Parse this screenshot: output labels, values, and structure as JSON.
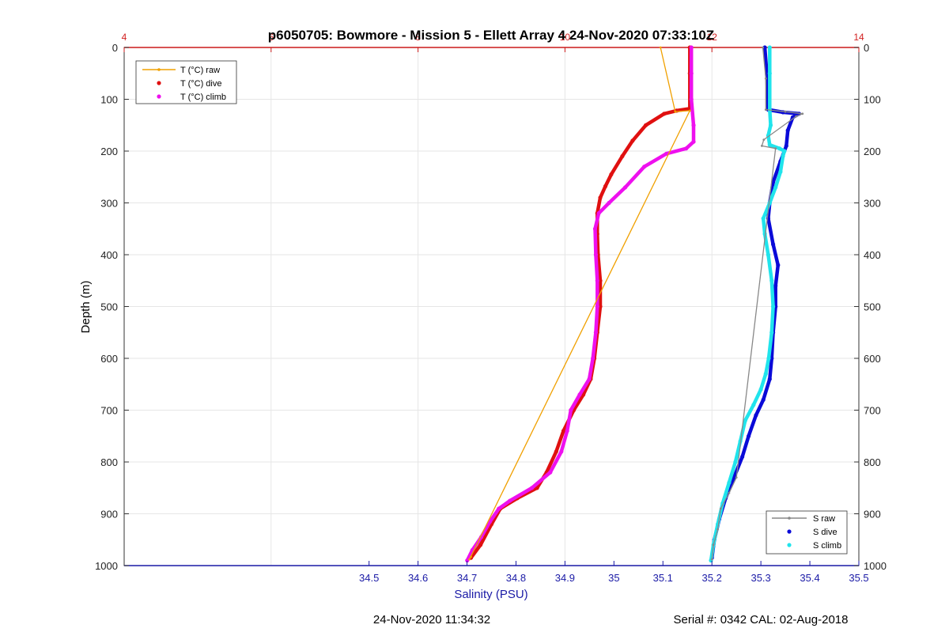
{
  "chart_data": {
    "type": "line",
    "title": "p6050705: Bowmore - Mission 5 - Ellett Array 4 24-Nov-2020 07:33:10Z",
    "xlabel": "Salinity (PSU)",
    "ylabel": "Depth (m)",
    "xlim": [
      34.0,
      35.5
    ],
    "ylim": [
      0,
      1000
    ],
    "y_reversed": true,
    "grid": true,
    "x_ticks": [
      "34.5",
      "34.6",
      "34.7",
      "34.8",
      "34.9",
      "35",
      "35.1",
      "35.2",
      "35.3",
      "35.4",
      "35.5"
    ],
    "y_ticks": [
      "0",
      "100",
      "200",
      "300",
      "400",
      "500",
      "600",
      "700",
      "800",
      "900",
      "1000"
    ],
    "top_axis": {
      "quantity": "Temperature (°C)",
      "xlim": [
        4,
        14
      ],
      "tick_values": [
        4,
        6,
        8,
        10,
        12,
        14
      ],
      "visible_labels": [
        "4",
        "6",
        "8",
        "10",
        "12",
        "14"
      ]
    },
    "legend_temperature": {
      "placement": "top-left",
      "entries": [
        "T (°C) raw",
        "T (°C) dive",
        "T (°C) climb"
      ]
    },
    "legend_salinity": {
      "placement": "bottom-right",
      "entries": [
        "S raw",
        "S dive",
        "S climb"
      ]
    },
    "series": [
      {
        "name": "T (°C) dive",
        "axis": "temperature",
        "color": "#e01010",
        "points": [
          [
            11.7,
            0
          ],
          [
            11.7,
            50
          ],
          [
            11.7,
            118
          ],
          [
            11.52,
            122
          ],
          [
            11.35,
            128
          ],
          [
            11.1,
            150
          ],
          [
            10.92,
            180
          ],
          [
            10.78,
            210
          ],
          [
            10.63,
            245
          ],
          [
            10.55,
            268
          ],
          [
            10.48,
            290
          ],
          [
            10.44,
            320
          ],
          [
            10.44,
            360
          ],
          [
            10.45,
            400
          ],
          [
            10.48,
            450
          ],
          [
            10.48,
            500
          ],
          [
            10.44,
            550
          ],
          [
            10.4,
            600
          ],
          [
            10.35,
            640
          ],
          [
            10.25,
            670
          ],
          [
            10.12,
            700
          ],
          [
            9.98,
            740
          ],
          [
            9.88,
            780
          ],
          [
            9.75,
            820
          ],
          [
            9.62,
            850
          ],
          [
            9.35,
            870
          ],
          [
            9.12,
            890
          ],
          [
            9.0,
            920
          ],
          [
            8.85,
            960
          ],
          [
            8.72,
            985
          ]
        ]
      },
      {
        "name": "T (°C) climb",
        "axis": "temperature",
        "color": "#ee10ee",
        "points": [
          [
            8.67,
            990
          ],
          [
            8.74,
            970
          ],
          [
            8.86,
            945
          ],
          [
            8.98,
            915
          ],
          [
            9.1,
            890
          ],
          [
            9.25,
            875
          ],
          [
            9.55,
            850
          ],
          [
            9.8,
            820
          ],
          [
            9.95,
            780
          ],
          [
            10.03,
            740
          ],
          [
            10.08,
            700
          ],
          [
            10.2,
            670
          ],
          [
            10.33,
            640
          ],
          [
            10.38,
            600
          ],
          [
            10.42,
            550
          ],
          [
            10.44,
            500
          ],
          [
            10.44,
            450
          ],
          [
            10.42,
            400
          ],
          [
            10.41,
            350
          ],
          [
            10.46,
            320
          ],
          [
            10.6,
            300
          ],
          [
            10.82,
            270
          ],
          [
            11.08,
            230
          ],
          [
            11.38,
            205
          ],
          [
            11.65,
            195
          ],
          [
            11.75,
            182
          ],
          [
            11.75,
            150
          ],
          [
            11.72,
            100
          ],
          [
            11.72,
            50
          ],
          [
            11.72,
            0
          ]
        ]
      },
      {
        "name": "T (°C) raw",
        "axis": "temperature",
        "color": "#f0a000",
        "points": [
          [
            11.3,
            0
          ],
          [
            11.5,
            124
          ],
          [
            11.7,
            122
          ],
          [
            8.7,
            988
          ],
          [
            8.72,
            983
          ]
        ]
      },
      {
        "name": "S dive",
        "axis": "salinity",
        "color": "#0a0ad8",
        "points": [
          [
            35.308,
            0
          ],
          [
            35.312,
            50
          ],
          [
            35.315,
            120
          ],
          [
            35.345,
            125
          ],
          [
            35.378,
            128
          ],
          [
            35.365,
            135
          ],
          [
            35.355,
            160
          ],
          [
            35.352,
            190
          ],
          [
            35.34,
            220
          ],
          [
            35.325,
            260
          ],
          [
            35.318,
            300
          ],
          [
            35.315,
            330
          ],
          [
            35.325,
            380
          ],
          [
            35.335,
            420
          ],
          [
            35.33,
            460
          ],
          [
            35.33,
            500
          ],
          [
            35.325,
            550
          ],
          [
            35.322,
            600
          ],
          [
            35.318,
            640
          ],
          [
            35.305,
            680
          ],
          [
            35.29,
            710
          ],
          [
            35.275,
            750
          ],
          [
            35.262,
            790
          ],
          [
            35.245,
            830
          ],
          [
            35.228,
            870
          ],
          [
            35.215,
            910
          ],
          [
            35.205,
            950
          ],
          [
            35.2,
            985
          ]
        ]
      },
      {
        "name": "S climb",
        "axis": "salinity",
        "color": "#20e4ec",
        "points": [
          [
            35.198,
            990
          ],
          [
            35.203,
            960
          ],
          [
            35.212,
            920
          ],
          [
            35.222,
            880
          ],
          [
            35.235,
            840
          ],
          [
            35.248,
            800
          ],
          [
            35.258,
            760
          ],
          [
            35.268,
            720
          ],
          [
            35.285,
            690
          ],
          [
            35.3,
            660
          ],
          [
            35.31,
            630
          ],
          [
            35.316,
            600
          ],
          [
            35.322,
            550
          ],
          [
            35.325,
            500
          ],
          [
            35.322,
            450
          ],
          [
            35.315,
            400
          ],
          [
            35.308,
            360
          ],
          [
            35.305,
            330
          ],
          [
            35.318,
            300
          ],
          [
            35.33,
            270
          ],
          [
            35.34,
            240
          ],
          [
            35.345,
            210
          ],
          [
            35.348,
            200
          ],
          [
            35.338,
            195
          ],
          [
            35.318,
            188
          ],
          [
            35.315,
            170
          ],
          [
            35.32,
            150
          ],
          [
            35.318,
            120
          ],
          [
            35.318,
            50
          ],
          [
            35.318,
            0
          ]
        ]
      },
      {
        "name": "S raw",
        "axis": "salinity",
        "color": "#888888",
        "points": [
          [
            35.304,
            0
          ],
          [
            35.31,
            60
          ],
          [
            35.31,
            120
          ],
          [
            35.35,
            124
          ],
          [
            35.385,
            128
          ],
          [
            35.372,
            133
          ],
          [
            35.306,
            178
          ],
          [
            35.302,
            190
          ],
          [
            35.33,
            195
          ],
          [
            35.25,
            830
          ],
          [
            35.235,
            860
          ],
          [
            35.218,
            890
          ],
          [
            35.212,
            930
          ],
          [
            35.203,
            960
          ],
          [
            35.2,
            988
          ]
        ]
      }
    ]
  },
  "footer": {
    "timestamp": "24-Nov-2020 11:34:32",
    "serial": "Serial #: 0342  CAL: 02-Aug-2018"
  }
}
